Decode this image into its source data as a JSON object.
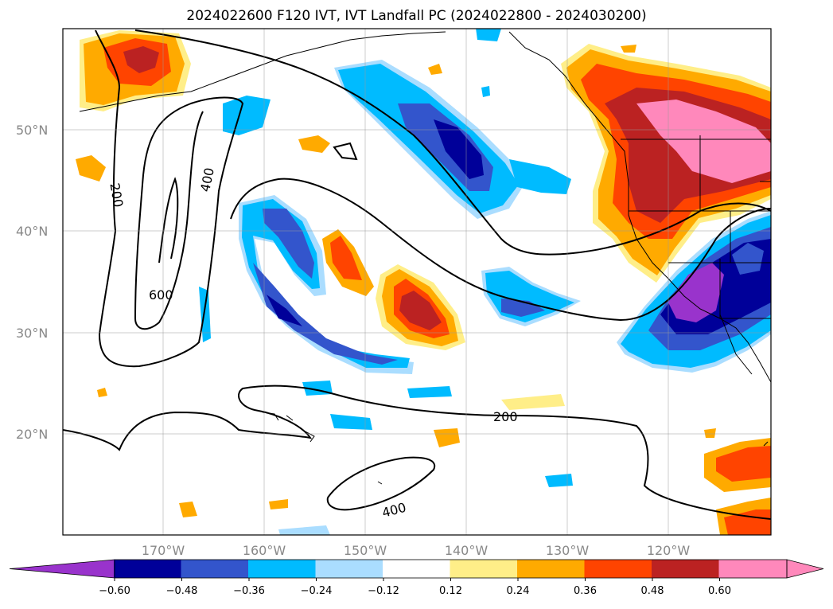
{
  "title": "2024022600 F120 IVT, IVT Landfall PC (2024022800 - 2024030200)",
  "lat_labels": [
    "50°N",
    "40°N",
    "30°N",
    "20°N"
  ],
  "lon_labels": [
    "170°W",
    "160°W",
    "150°W",
    "140°W",
    "130°W",
    "120°W"
  ],
  "contour_labels": [
    "200",
    "400",
    "600",
    "200",
    "400"
  ],
  "colorbar": {
    "labels": [
      "−0.60",
      "−0.48",
      "−0.36",
      "−0.24",
      "−0.12",
      "0.12",
      "0.24",
      "0.36",
      "0.48",
      "0.60"
    ],
    "colors": [
      "#9933cc",
      "#000099",
      "#3355cc",
      "#00bbff",
      "#aaddff",
      "#ffffff",
      "#ffee88",
      "#ffaa00",
      "#ff4400",
      "#bb2222",
      "#ff88bb"
    ]
  }
}
